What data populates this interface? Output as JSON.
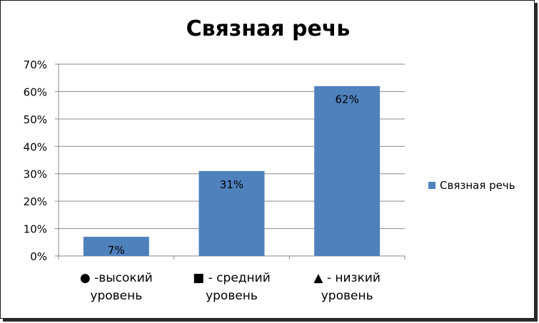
{
  "chart_data": {
    "type": "bar",
    "title": "Связная речь",
    "categories": [
      [
        "● -высокий",
        "уровень"
      ],
      [
        "■ - средний",
        "уровень"
      ],
      [
        "▲ - низкий",
        "уровень"
      ]
    ],
    "series": [
      {
        "name": "Связная речь",
        "values": [
          7,
          31,
          62
        ],
        "data_labels": [
          "7%",
          "31%",
          "62%"
        ],
        "color": "#4f81bd"
      }
    ],
    "y_ticks": [
      "0%",
      "10%",
      "20%",
      "30%",
      "40%",
      "50%",
      "60%",
      "70%"
    ],
    "ylim": [
      0,
      70
    ],
    "grid": true,
    "legend_position": "right"
  }
}
